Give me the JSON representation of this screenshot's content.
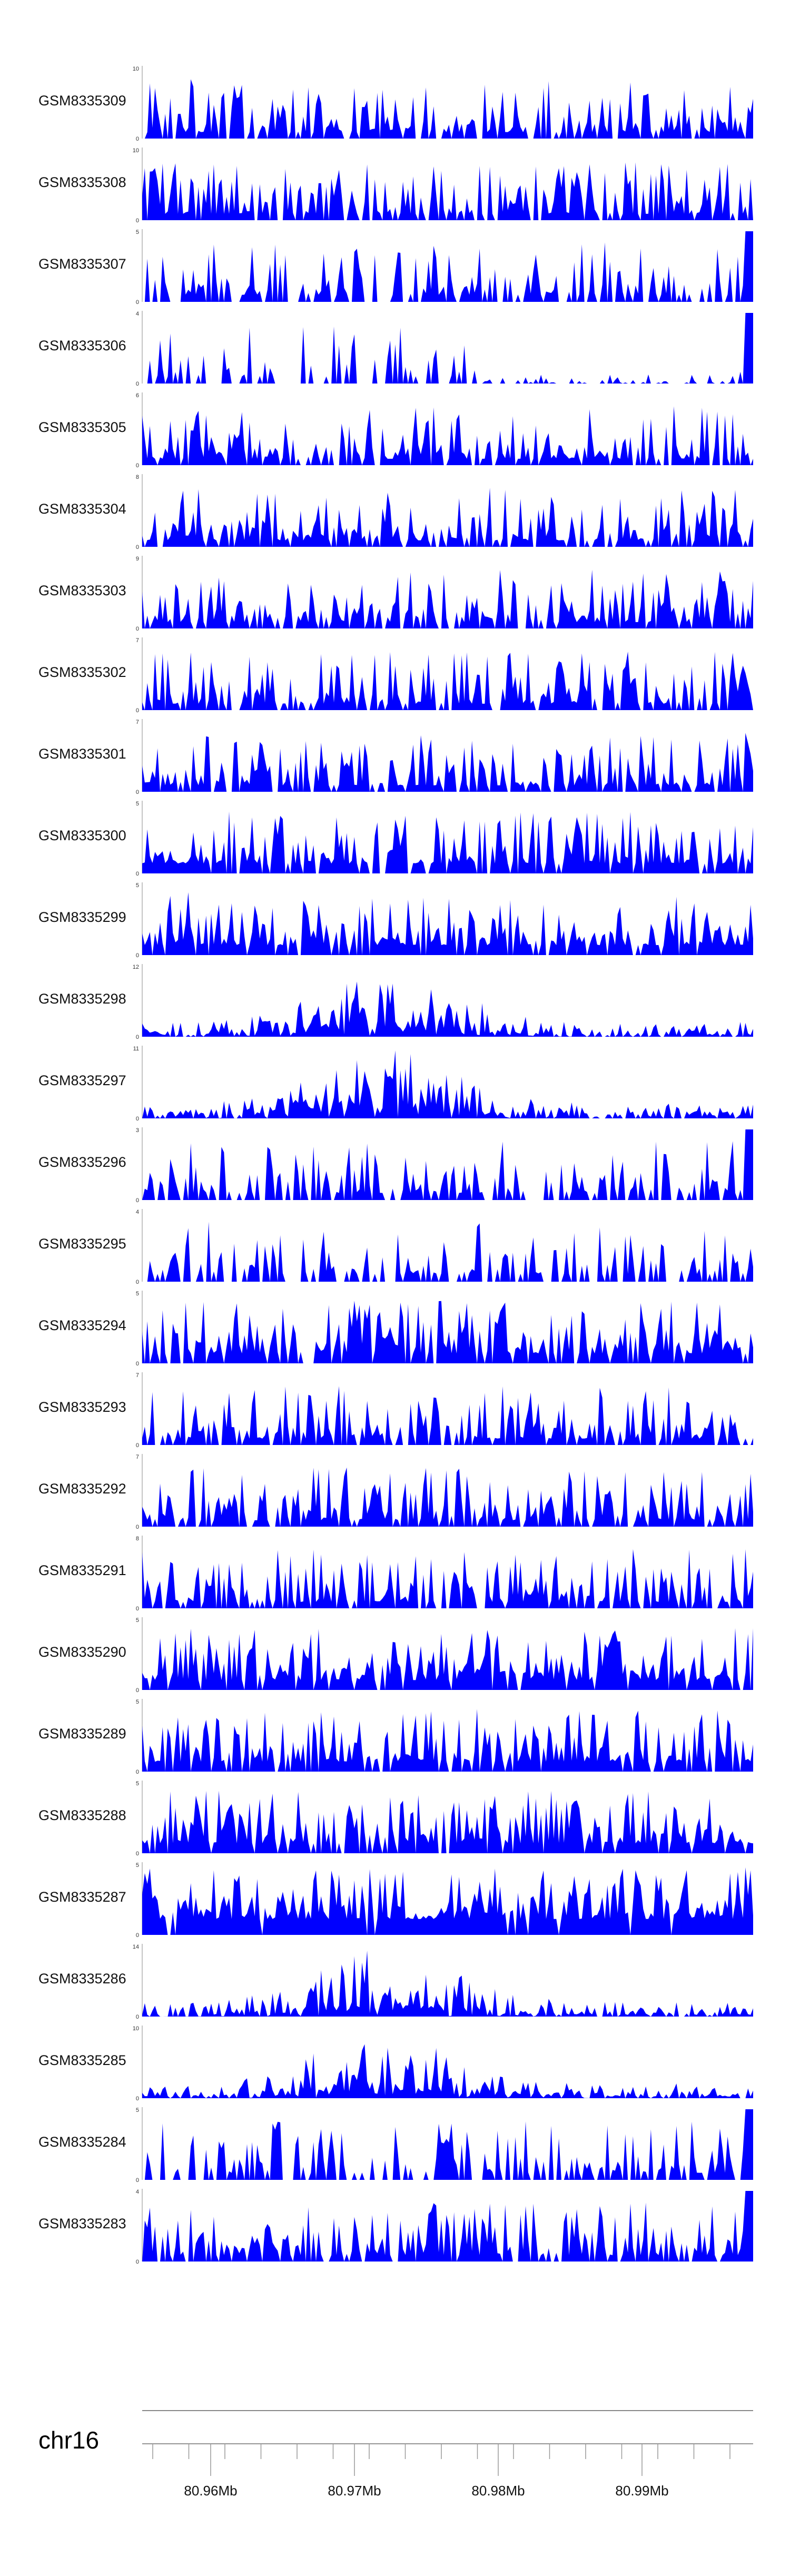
{
  "chart_data": {
    "type": "area",
    "fill_color": "#0000ff",
    "chromosome": "chr16",
    "x_axis_ticks": [
      "80.96Mb",
      "80.97Mb",
      "80.98Mb",
      "80.99Mb"
    ],
    "tracks": [
      {
        "name": "GSM8335309",
        "ymax": "10",
        "ymin": "0",
        "peak": 10,
        "seed": 11,
        "profile": "uniform"
      },
      {
        "name": "GSM8335308",
        "ymax": "10",
        "ymin": "0",
        "peak": 10,
        "seed": 12,
        "profile": "uniform"
      },
      {
        "name": "GSM8335307",
        "ymax": "5",
        "ymin": "0",
        "peak": 5,
        "seed": 13,
        "profile": "sparse_end"
      },
      {
        "name": "GSM8335306",
        "ymax": "4",
        "ymin": "0",
        "peak": 4,
        "seed": 14,
        "profile": "very_sparse_end"
      },
      {
        "name": "GSM8335305",
        "ymax": "6",
        "ymin": "0",
        "peak": 6,
        "seed": 15,
        "profile": "uniform"
      },
      {
        "name": "GSM8335304",
        "ymax": "8",
        "ymin": "0",
        "peak": 8,
        "seed": 16,
        "profile": "uniform"
      },
      {
        "name": "GSM8335303",
        "ymax": "9",
        "ymin": "0",
        "peak": 9,
        "seed": 17,
        "profile": "uniform"
      },
      {
        "name": "GSM8335302",
        "ymax": "7",
        "ymin": "0",
        "peak": 7,
        "seed": 18,
        "profile": "uniform"
      },
      {
        "name": "GSM8335301",
        "ymax": "7",
        "ymin": "0",
        "peak": 7,
        "seed": 19,
        "profile": "uniform"
      },
      {
        "name": "GSM8335300",
        "ymax": "5",
        "ymin": "0",
        "peak": 5,
        "seed": 20,
        "profile": "dense"
      },
      {
        "name": "GSM8335299",
        "ymax": "5",
        "ymin": "0",
        "peak": 5,
        "seed": 21,
        "profile": "dense"
      },
      {
        "name": "GSM8335298",
        "ymax": "12",
        "ymin": "0",
        "peak": 12,
        "seed": 22,
        "profile": "middle_hump"
      },
      {
        "name": "GSM8335297",
        "ymax": "11",
        "ymin": "0",
        "peak": 11,
        "seed": 23,
        "profile": "middle_hump"
      },
      {
        "name": "GSM8335296",
        "ymax": "3",
        "ymin": "0",
        "peak": 3,
        "seed": 24,
        "profile": "sparse_end"
      },
      {
        "name": "GSM8335295",
        "ymax": "4",
        "ymin": "0",
        "peak": 4,
        "seed": 25,
        "profile": "sparse"
      },
      {
        "name": "GSM8335294",
        "ymax": "5",
        "ymin": "0",
        "peak": 5,
        "seed": 26,
        "profile": "dense"
      },
      {
        "name": "GSM8335293",
        "ymax": "7",
        "ymin": "0",
        "peak": 7,
        "seed": 27,
        "profile": "uniform"
      },
      {
        "name": "GSM8335292",
        "ymax": "7",
        "ymin": "0",
        "peak": 7,
        "seed": 28,
        "profile": "uniform"
      },
      {
        "name": "GSM8335291",
        "ymax": "8",
        "ymin": "0",
        "peak": 8,
        "seed": 29,
        "profile": "uniform"
      },
      {
        "name": "GSM8335290",
        "ymax": "5",
        "ymin": "0",
        "peak": 5,
        "seed": 30,
        "profile": "dense"
      },
      {
        "name": "GSM8335289",
        "ymax": "5",
        "ymin": "0",
        "peak": 5,
        "seed": 31,
        "profile": "dense"
      },
      {
        "name": "GSM8335288",
        "ymax": "5",
        "ymin": "0",
        "peak": 5,
        "seed": 32,
        "profile": "dense"
      },
      {
        "name": "GSM8335287",
        "ymax": "5",
        "ymin": "0",
        "peak": 5,
        "seed": 33,
        "profile": "very_dense"
      },
      {
        "name": "GSM8335286",
        "ymax": "14",
        "ymin": "0",
        "peak": 14,
        "seed": 34,
        "profile": "middle_hump"
      },
      {
        "name": "GSM8335285",
        "ymax": "10",
        "ymin": "0",
        "peak": 10,
        "seed": 35,
        "profile": "middle_hump"
      },
      {
        "name": "GSM8335284",
        "ymax": "5",
        "ymin": "0",
        "peak": 5,
        "seed": 36,
        "profile": "sparse_end"
      },
      {
        "name": "GSM8335283",
        "ymax": "4",
        "ymin": "0",
        "peak": 4,
        "seed": 37,
        "profile": "uniform_end"
      }
    ]
  }
}
